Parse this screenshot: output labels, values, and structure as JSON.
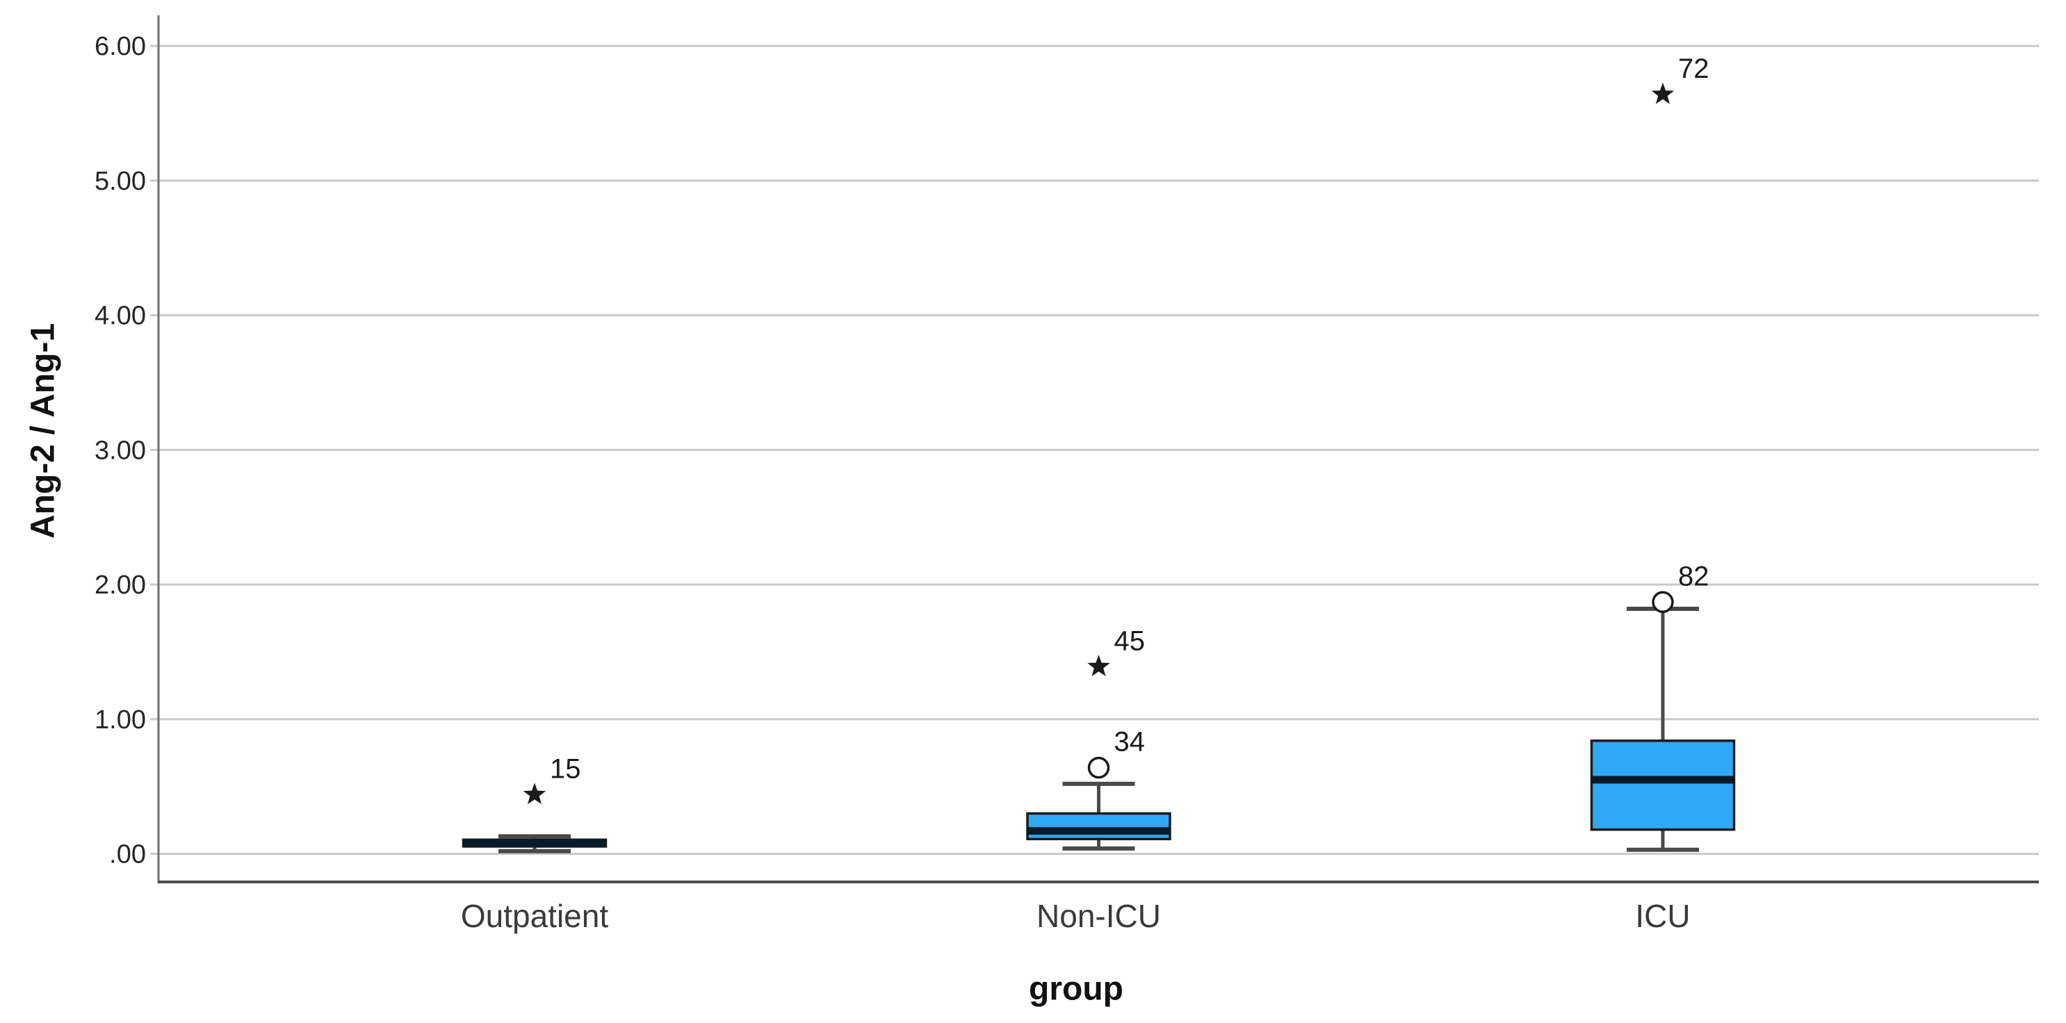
{
  "figure": {
    "background": "#ffffff"
  },
  "chart_data": {
    "type": "boxplot",
    "title": "",
    "xlabel": "group",
    "ylabel": "Ang-2 / Ang-1",
    "categories": [
      "Outpatient",
      "Non-ICU",
      "ICU"
    ],
    "ylim": [
      -0.322,
      6.114
    ],
    "grid": "horizontal-only",
    "legend": "none",
    "y_ticks": [
      {
        "value": 0,
        "label": ".00"
      },
      {
        "value": 1,
        "label": "1.00"
      },
      {
        "value": 2,
        "label": "2.00"
      },
      {
        "value": 3,
        "label": "3.00"
      },
      {
        "value": 4,
        "label": "4.00"
      },
      {
        "value": 5,
        "label": "5.00"
      },
      {
        "value": 6,
        "label": "6.00"
      }
    ],
    "boxes": [
      {
        "category": "Outpatient",
        "whisker_low": 0.02,
        "q1": 0.055,
        "median": 0.08,
        "q3": 0.105,
        "whisker_high": 0.13,
        "outliers": [
          {
            "value": 0.44,
            "label": "15",
            "type": "extreme"
          }
        ]
      },
      {
        "category": "Non-ICU",
        "whisker_low": 0.04,
        "q1": 0.11,
        "median": 0.17,
        "q3": 0.3,
        "whisker_high": 0.52,
        "outliers": [
          {
            "value": 0.64,
            "label": "34",
            "type": "mild"
          },
          {
            "value": 1.39,
            "label": "45",
            "type": "extreme"
          }
        ]
      },
      {
        "category": "ICU",
        "whisker_low": 0.03,
        "q1": 0.18,
        "median": 0.55,
        "q3": 0.84,
        "whisker_high": 1.82,
        "outliers": [
          {
            "value": 1.87,
            "label": "82",
            "type": "mild"
          },
          {
            "value": 5.64,
            "label": "72",
            "type": "extreme"
          }
        ]
      }
    ],
    "colors": {
      "box_fill": "#2FA8F5",
      "box_border": "#1A1A1A",
      "median": "#0A1B28",
      "whisker": "#4A4A4A",
      "gridline": "#C9C9C9",
      "axis_left": "#6E6E6E",
      "axis_bottom": "#4D4D4D",
      "tick_text": "#262626",
      "category_text": "#3A3A3A",
      "outlier_text": "#1A1A1A",
      "title_text": "#111111"
    }
  }
}
